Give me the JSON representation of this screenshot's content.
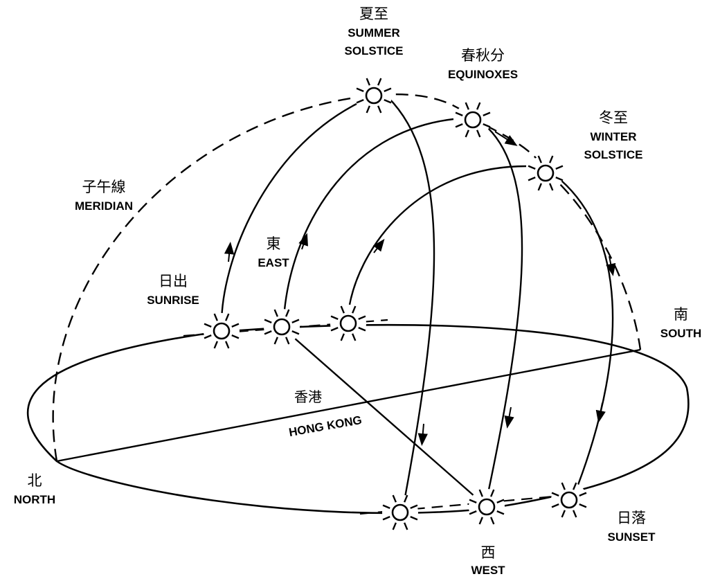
{
  "labels": {
    "summer_solstice": {
      "cn": "夏至",
      "en1": "SUMMER",
      "en2": "SOLSTICE"
    },
    "equinoxes": {
      "cn": "春秋分",
      "en": "EQUINOXES"
    },
    "winter_solstice": {
      "cn": "冬至",
      "en1": "WINTER",
      "en2": "SOLSTICE"
    },
    "meridian": {
      "cn": "子午線",
      "en": "MERIDIAN"
    },
    "east": {
      "cn": "東",
      "en": "EAST"
    },
    "sunrise": {
      "cn": "日出",
      "en": "SUNRISE"
    },
    "south": {
      "cn": "南",
      "en": "SOUTH"
    },
    "hong_kong": {
      "cn": "香港",
      "en": "HONG KONG"
    },
    "north": {
      "cn": "北",
      "en": "NORTH"
    },
    "west": {
      "cn": "西",
      "en": "WEST"
    },
    "sunset": {
      "cn": "日落",
      "en": "SUNSET"
    }
  },
  "suns": [
    "summer-solstice-noon",
    "equinox-noon",
    "winter-solstice-noon",
    "summer-sunrise",
    "equinox-sunrise",
    "winter-sunrise",
    "summer-sunset",
    "equinox-sunset",
    "winter-sunset"
  ]
}
